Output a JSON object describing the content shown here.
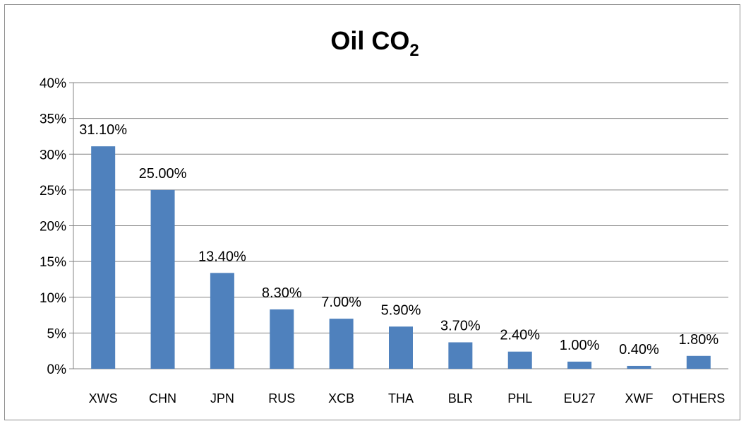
{
  "chart_data": {
    "type": "bar",
    "title": "Oil CO",
    "title_subscript": "2",
    "xlabel": "",
    "ylabel": "",
    "categories": [
      "XWS",
      "CHN",
      "JPN",
      "RUS",
      "XCB",
      "THA",
      "BLR",
      "PHL",
      "EU27",
      "XWF",
      "OTHERS"
    ],
    "values": [
      31.1,
      25.0,
      13.4,
      8.3,
      7.0,
      5.9,
      3.7,
      2.4,
      1.0,
      0.4,
      1.8
    ],
    "data_labels": [
      "31.10%",
      "25.00%",
      "13.40%",
      "8.30%",
      "7.00%",
      "5.90%",
      "3.70%",
      "2.40%",
      "1.00%",
      "0.40%",
      "1.80%"
    ],
    "ylim": [
      0,
      40
    ],
    "y_ticks": [
      0,
      5,
      10,
      15,
      20,
      25,
      30,
      35,
      40
    ],
    "y_tick_labels": [
      "0%",
      "5%",
      "10%",
      "15%",
      "20%",
      "25%",
      "30%",
      "35%",
      "40%"
    ],
    "grid": true,
    "legend": "none",
    "bar_color": "#4f81bd"
  }
}
